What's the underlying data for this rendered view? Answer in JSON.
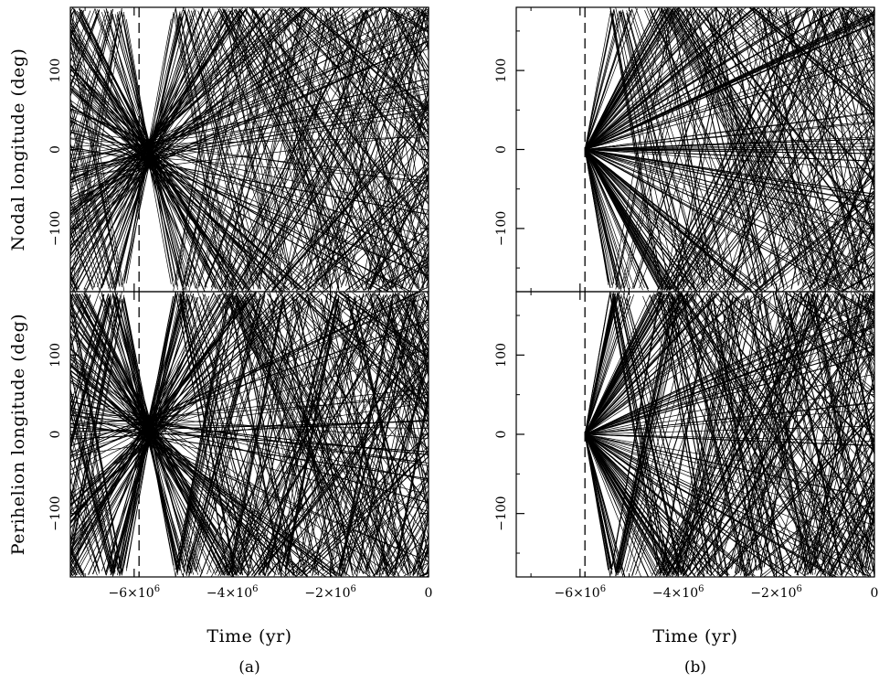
{
  "chart_data": [
    {
      "type": "line",
      "panel": "(a)",
      "xlabel": "Time (yr)",
      "xlim": [
        -7300000,
        0
      ],
      "x_ticks": [
        {
          "value": -6000000,
          "label": "−6×10"
        },
        {
          "value": -4000000,
          "label": "−4×10"
        },
        {
          "value": -2000000,
          "label": "−2×10"
        },
        {
          "value": 0,
          "label": "0"
        }
      ],
      "x_tick_exponent": "6",
      "marker_time": -5900000,
      "subplots": [
        {
          "ylabel": "Nodal longitude (deg)",
          "ylim": [
            -180,
            180
          ],
          "y_ticks": [
            -100,
            0,
            100
          ],
          "convergence": {
            "time": -5700000,
            "value": -5,
            "spread_deg": 18
          },
          "trajectory_count": 160,
          "angle_wrap": true
        },
        {
          "ylabel": "Perihelion longitude (deg)",
          "ylim": [
            -180,
            180
          ],
          "y_ticks": [
            -100,
            0,
            100
          ],
          "convergence": {
            "time": -5700000,
            "value": 5,
            "spread_deg": 18
          },
          "trajectory_count": 160,
          "angle_wrap": true
        }
      ]
    },
    {
      "type": "line",
      "panel": "(b)",
      "xlabel": "Time (yr)",
      "xlim": [
        -7300000,
        0
      ],
      "x_ticks": [
        {
          "value": -6000000,
          "label": "−6×10"
        },
        {
          "value": -4000000,
          "label": "−4×10"
        },
        {
          "value": -2000000,
          "label": "−2×10"
        },
        {
          "value": 0,
          "label": "0"
        }
      ],
      "x_tick_exponent": "6",
      "marker_time": -5900000,
      "subplots": [
        {
          "ylabel": "",
          "ylim": [
            -180,
            180
          ],
          "y_ticks": [
            -100,
            0,
            100
          ],
          "convergence": {
            "time": -5900000,
            "value": 0,
            "spread_deg": 0
          },
          "trajectory_count": 160,
          "angle_wrap": true
        },
        {
          "ylabel": "",
          "ylim": [
            -180,
            180
          ],
          "y_ticks": [
            -100,
            0,
            100
          ],
          "convergence": {
            "time": -5900000,
            "value": 0,
            "spread_deg": 0
          },
          "trajectory_count": 160,
          "angle_wrap": true
        }
      ]
    }
  ],
  "line_color": "#000000"
}
